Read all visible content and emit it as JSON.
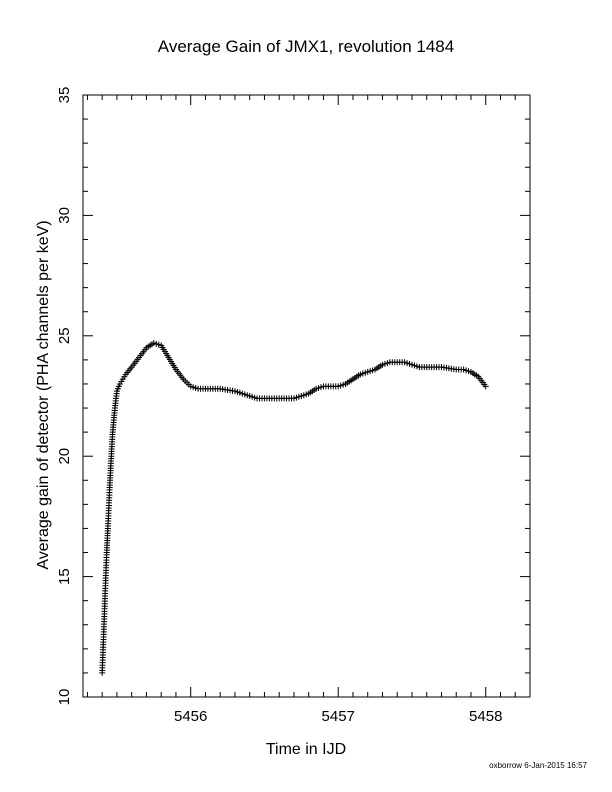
{
  "chart_data": {
    "type": "scatter",
    "title": "Average Gain of JMX1, revolution 1484",
    "xlabel": "Time in IJD",
    "ylabel": "Average gain of detector (PHA channels per keV)",
    "xlim": [
      5455.27,
      5458.3
    ],
    "ylim": [
      10,
      35
    ],
    "x_ticks": [
      5456,
      5457,
      5458
    ],
    "y_ticks": [
      10,
      15,
      20,
      25,
      30,
      35
    ],
    "x_minor_step": 0.1,
    "y_minor_step": 1,
    "marker": "plus",
    "grid": false,
    "series": [
      {
        "x": [
          5455.4,
          5455.41,
          5455.42,
          5455.43,
          5455.44,
          5455.45,
          5455.46,
          5455.47,
          5455.48,
          5455.49,
          5455.5,
          5455.52,
          5455.54,
          5455.56,
          5455.6,
          5455.65,
          5455.7,
          5455.75,
          5455.8,
          5455.85,
          5455.9,
          5455.95,
          5456.0,
          5456.05,
          5456.1,
          5456.15,
          5456.2,
          5456.3,
          5456.4,
          5456.45,
          5456.5,
          5456.6,
          5456.7,
          5456.75,
          5456.8,
          5456.85,
          5456.9,
          5457.0,
          5457.05,
          5457.1,
          5457.15,
          5457.2,
          5457.25,
          5457.3,
          5457.35,
          5457.45,
          5457.5,
          5457.55,
          5457.6,
          5457.7,
          5457.8,
          5457.85,
          5457.9,
          5457.95,
          5458.0
        ],
        "y": [
          11.0,
          12.6,
          14.3,
          15.9,
          17.2,
          18.6,
          19.8,
          20.9,
          21.6,
          22.2,
          22.7,
          23.0,
          23.2,
          23.4,
          23.7,
          24.1,
          24.5,
          24.7,
          24.6,
          24.1,
          23.6,
          23.2,
          22.9,
          22.8,
          22.8,
          22.8,
          22.8,
          22.7,
          22.5,
          22.4,
          22.4,
          22.4,
          22.4,
          22.5,
          22.6,
          22.8,
          22.9,
          22.9,
          23.0,
          23.2,
          23.4,
          23.5,
          23.6,
          23.8,
          23.9,
          23.9,
          23.8,
          23.7,
          23.7,
          23.7,
          23.6,
          23.6,
          23.5,
          23.3,
          22.9
        ]
      }
    ]
  },
  "footer": "oxborrow  6-Jan-2015 16:57"
}
